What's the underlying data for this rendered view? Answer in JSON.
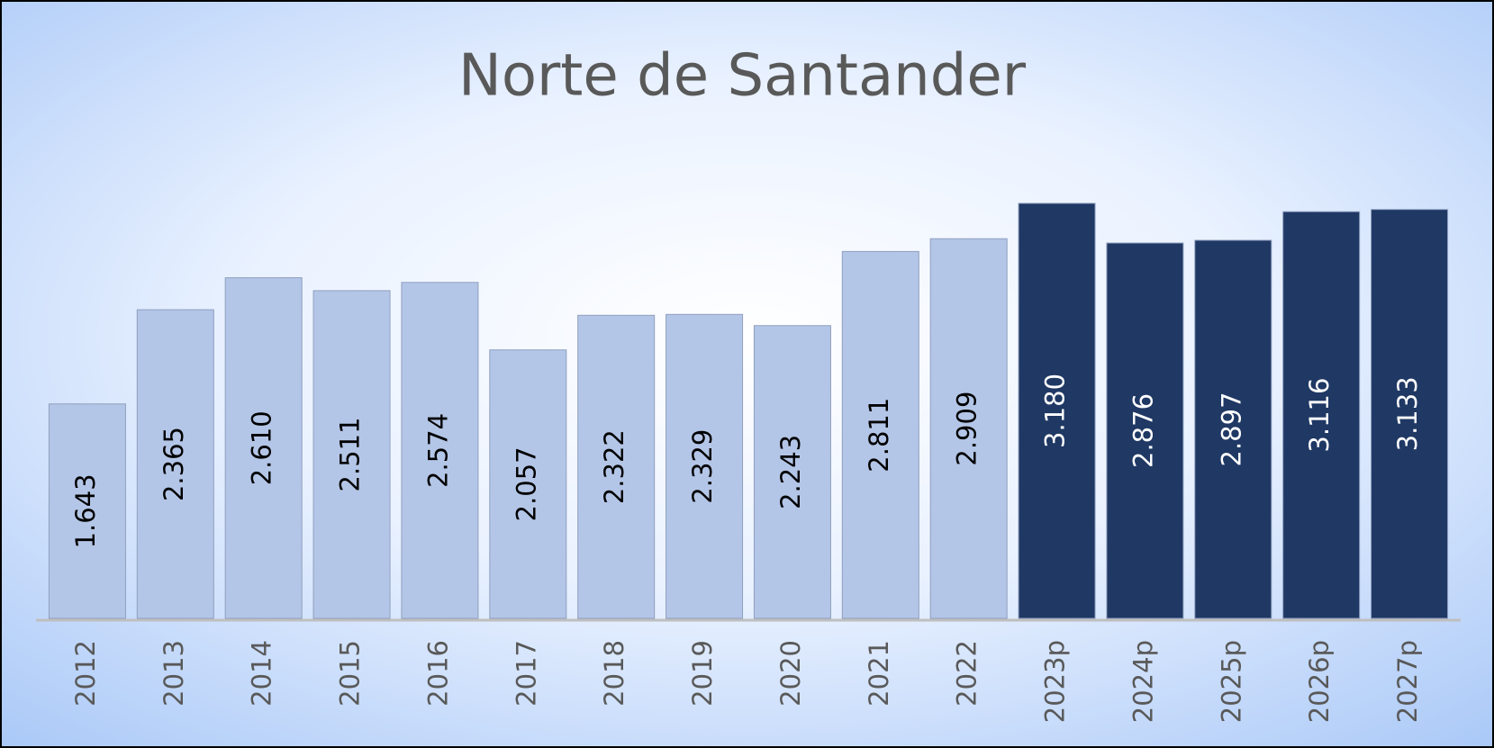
{
  "chart_data": {
    "type": "bar",
    "title": "Norte de Santander",
    "categories": [
      "2012",
      "2013",
      "2014",
      "2015",
      "2016",
      "2017",
      "2018",
      "2019",
      "2020",
      "2021",
      "2022",
      "2023p",
      "2024p",
      "2025p",
      "2026p",
      "2027p"
    ],
    "values": [
      1.643,
      2.365,
      2.61,
      2.511,
      2.574,
      2.057,
      2.322,
      2.329,
      2.243,
      2.811,
      2.909,
      3.18,
      2.876,
      2.897,
      3.116,
      3.133
    ],
    "value_labels": [
      "1.643",
      "2.365",
      "2.610",
      "2.511",
      "2.574",
      "2.057",
      "2.322",
      "2.329",
      "2.243",
      "2.811",
      "2.909",
      "3.180",
      "2.876",
      "2.897",
      "3.116",
      "3.133"
    ],
    "colors": [
      "#b4c6e7",
      "#b4c6e7",
      "#b4c6e7",
      "#b4c6e7",
      "#b4c6e7",
      "#b4c6e7",
      "#b4c6e7",
      "#b4c6e7",
      "#b4c6e7",
      "#b4c6e7",
      "#b4c6e7",
      "#1f3864",
      "#1f3864",
      "#1f3864",
      "#1f3864",
      "#1f3864"
    ],
    "label_colors": [
      "#000000",
      "#000000",
      "#000000",
      "#000000",
      "#000000",
      "#000000",
      "#000000",
      "#000000",
      "#000000",
      "#000000",
      "#000000",
      "#ffffff",
      "#ffffff",
      "#ffffff",
      "#ffffff",
      "#ffffff"
    ]
  }
}
